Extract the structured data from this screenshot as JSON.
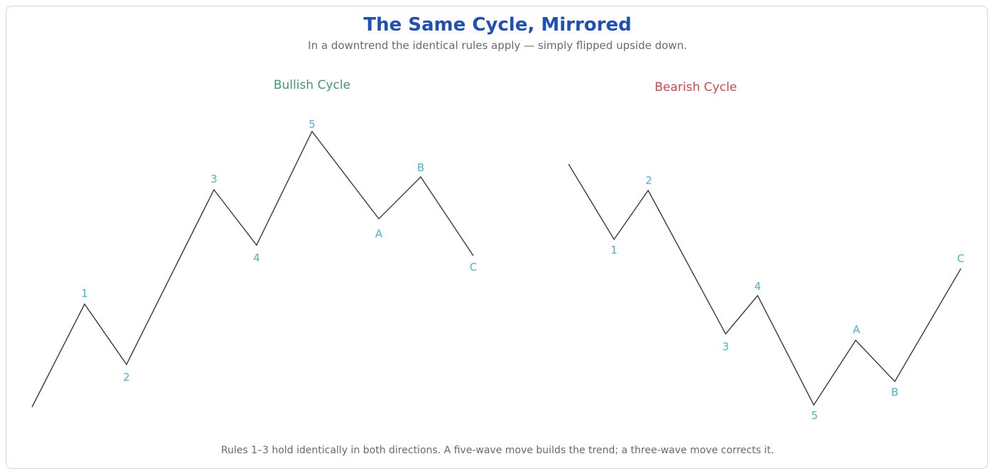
{
  "title": "The Same Cycle, Mirrored",
  "subtitle": "In a downtrend the identical rules apply — simply flipped upside down.",
  "footer": "Rules 1–3 hold identically in both directions. A five-wave move builds the trend; a three-wave move corrects it.",
  "colors": {
    "title": "#1f4fb8",
    "bullish": "#3a9a76",
    "bearish": "#d9434a",
    "wave_label": "#4bb3d3",
    "line": "#3a3a3a"
  },
  "panels": [
    {
      "id": "bullish",
      "title": "Bullish Cycle",
      "color_key": "bullish",
      "labels": [
        "1",
        "2",
        "3",
        "4",
        "5",
        "A",
        "B",
        "C"
      ]
    },
    {
      "id": "bearish",
      "title": "Bearish Cycle",
      "color_key": "bearish",
      "labels": [
        "1",
        "2",
        "3",
        "4",
        "5",
        "A",
        "B",
        "C"
      ]
    }
  ]
}
